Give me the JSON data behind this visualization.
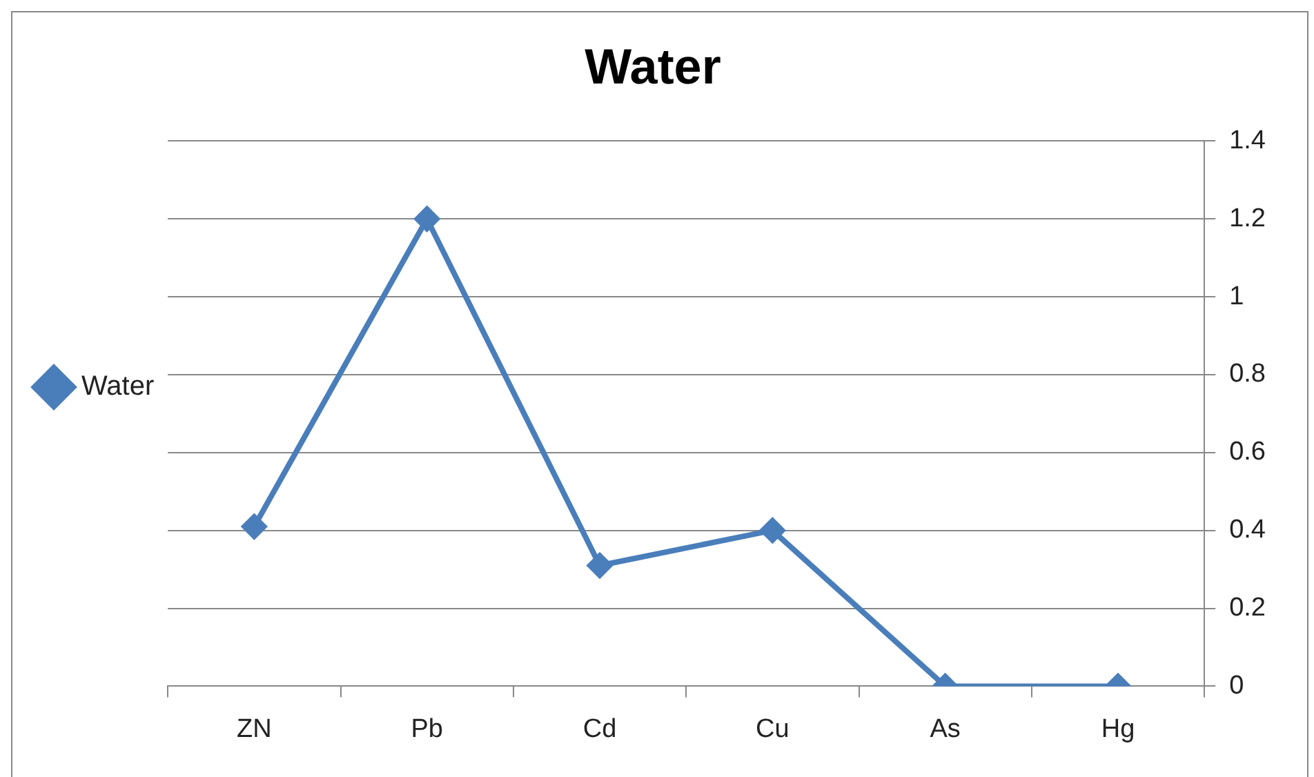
{
  "chart_data": {
    "type": "line",
    "title": "Water",
    "categories": [
      "ZN",
      "Pb",
      "Cd",
      "Cu",
      "As",
      "Hg"
    ],
    "series": [
      {
        "name": "Water",
        "color": "#4a7ebb",
        "values": [
          0.41,
          1.2,
          0.31,
          0.4,
          0,
          0
        ]
      }
    ],
    "ylim": [
      0,
      1.4
    ],
    "yticks": [
      0,
      0.2,
      0.4,
      0.6,
      0.8,
      1,
      1.2,
      1.4
    ],
    "grid": "y",
    "legend": "left",
    "marker": "diamond"
  }
}
